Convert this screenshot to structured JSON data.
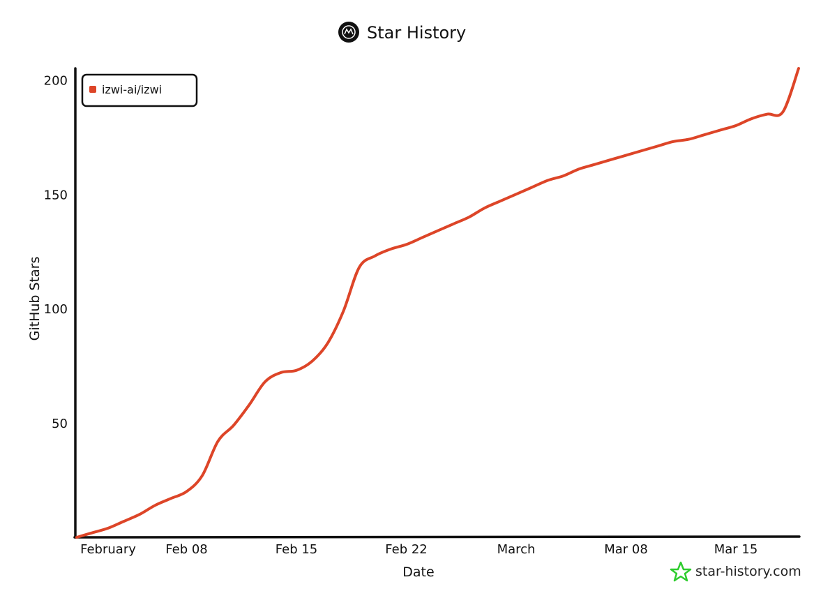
{
  "chart_data": {
    "type": "line",
    "title": "Star History",
    "xlabel": "Date",
    "ylabel": "GitHub Stars",
    "x_range": [
      "2026-02-01",
      "2026-03-19"
    ],
    "ylim": [
      0,
      205
    ],
    "y_ticks": [
      50,
      100,
      150,
      200
    ],
    "x_ticks": [
      {
        "date": "2026-02-03",
        "label": "February"
      },
      {
        "date": "2026-02-08",
        "label": "Feb 08"
      },
      {
        "date": "2026-02-15",
        "label": "Feb 15"
      },
      {
        "date": "2026-02-22",
        "label": "Feb 22"
      },
      {
        "date": "2026-03-01",
        "label": "March"
      },
      {
        "date": "2026-03-08",
        "label": "Mar 08"
      },
      {
        "date": "2026-03-15",
        "label": "Mar 15"
      }
    ],
    "legend_position": "top-left",
    "grid": false,
    "series": [
      {
        "name": "izwi-ai/izwi",
        "color": "#dd4528",
        "points": [
          [
            "2026-02-01",
            0
          ],
          [
            "2026-02-02",
            2
          ],
          [
            "2026-02-03",
            4
          ],
          [
            "2026-02-04",
            7
          ],
          [
            "2026-02-05",
            10
          ],
          [
            "2026-02-06",
            14
          ],
          [
            "2026-02-07",
            17
          ],
          [
            "2026-02-08",
            20
          ],
          [
            "2026-02-09",
            27
          ],
          [
            "2026-02-10",
            42
          ],
          [
            "2026-02-11",
            49
          ],
          [
            "2026-02-12",
            58
          ],
          [
            "2026-02-13",
            68
          ],
          [
            "2026-02-14",
            72
          ],
          [
            "2026-02-15",
            73
          ],
          [
            "2026-02-16",
            77
          ],
          [
            "2026-02-17",
            85
          ],
          [
            "2026-02-18",
            99
          ],
          [
            "2026-02-19",
            118
          ],
          [
            "2026-02-20",
            123
          ],
          [
            "2026-02-21",
            126
          ],
          [
            "2026-02-22",
            128
          ],
          [
            "2026-02-23",
            131
          ],
          [
            "2026-02-24",
            134
          ],
          [
            "2026-02-25",
            137
          ],
          [
            "2026-02-26",
            140
          ],
          [
            "2026-02-27",
            144
          ],
          [
            "2026-02-28",
            147
          ],
          [
            "2026-03-01",
            150
          ],
          [
            "2026-03-02",
            153
          ],
          [
            "2026-03-03",
            156
          ],
          [
            "2026-03-04",
            158
          ],
          [
            "2026-03-05",
            161
          ],
          [
            "2026-03-06",
            163
          ],
          [
            "2026-03-07",
            165
          ],
          [
            "2026-03-08",
            167
          ],
          [
            "2026-03-09",
            169
          ],
          [
            "2026-03-10",
            171
          ],
          [
            "2026-03-11",
            173
          ],
          [
            "2026-03-12",
            174
          ],
          [
            "2026-03-13",
            176
          ],
          [
            "2026-03-14",
            178
          ],
          [
            "2026-03-15",
            180
          ],
          [
            "2026-03-16",
            183
          ],
          [
            "2026-03-17",
            185
          ],
          [
            "2026-03-18",
            186
          ],
          [
            "2026-03-19",
            205
          ]
        ]
      }
    ]
  },
  "watermark": {
    "text": "star-history.com",
    "icon": "star-icon",
    "icon_color": "#2ecc2e"
  },
  "logo": {
    "icon": "star-history-logo-icon"
  }
}
